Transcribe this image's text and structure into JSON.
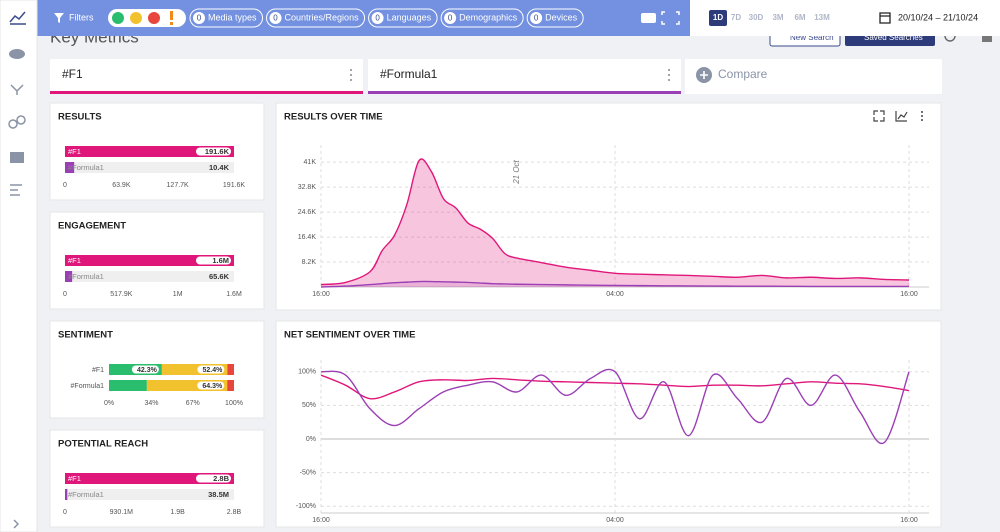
{
  "toolbar": {
    "filters": "Filters",
    "chips": [
      {
        "count": 0,
        "label": "Media types"
      },
      {
        "count": 0,
        "label": "Countries/Regions"
      },
      {
        "count": 0,
        "label": "Languages"
      },
      {
        "count": 0,
        "label": "Demographics"
      },
      {
        "count": 0,
        "label": "Devices"
      }
    ],
    "ranges": [
      "1D",
      "7D",
      "30D",
      "3M",
      "6M",
      "13M"
    ],
    "date": "20/10/24 – 21/10/24"
  },
  "header": {
    "title": "Key Metrics",
    "new_search": "New Search",
    "saved_searches": "Saved Searches"
  },
  "searches": {
    "items": [
      "#F1",
      "#Formula1"
    ],
    "colors": [
      "#e0177a",
      "#9b3fb5"
    ],
    "compare": "Compare"
  },
  "chart_data": [
    {
      "type": "hbar",
      "title": "RESULTS",
      "categories": [
        "#F1",
        "#Formula1"
      ],
      "values": [
        191600,
        10400
      ],
      "value_labels": [
        "191.6K",
        "10.4K"
      ],
      "colors": [
        "#e0177a",
        "#9b3fb5"
      ],
      "xlim": [
        0,
        191600
      ],
      "xticks": [
        0,
        {
          "value": 63900,
          "label": "63.9K"
        },
        {
          "value": 127700,
          "label": "127.7K"
        },
        {
          "value": 191600,
          "label": "191.6K"
        }
      ]
    },
    {
      "type": "hbar",
      "title": "ENGAGEMENT",
      "categories": [
        "#F1",
        "#Formula1"
      ],
      "values": [
        1553700,
        65600
      ],
      "value_labels": [
        "1.6M",
        "65.6K"
      ],
      "colors": [
        "#e0177a",
        "#9b3fb5"
      ],
      "xlim": [
        0,
        1553700
      ],
      "xticks": [
        0,
        {
          "value": 517900,
          "label": "517.9K"
        },
        {
          "value": 1035800,
          "label": "1M"
        },
        {
          "value": 1553700,
          "label": "1.6M"
        }
      ]
    },
    {
      "type": "stacked_hbar",
      "title": "SENTIMENT",
      "categories": [
        "#F1",
        "#Formula1"
      ],
      "series": [
        {
          "color": "#2bbd6e",
          "values": [
            42.3,
            30.3
          ],
          "value_labels": [
            "42.3%",
            null
          ]
        },
        {
          "color": "#f2c12e",
          "values": [
            52.4,
            64.3
          ],
          "value_labels": [
            "52.4%",
            "64.3%"
          ]
        },
        {
          "color": "#e8453c",
          "values": [
            5.3,
            5.4
          ]
        }
      ],
      "xlim": [
        0,
        100
      ],
      "xticks": [
        {
          "value": 0,
          "label": "0%"
        },
        {
          "value": 34,
          "label": "34%"
        },
        {
          "value": 67,
          "label": "67%"
        },
        {
          "value": 100,
          "label": "100%"
        }
      ]
    },
    {
      "type": "hbar",
      "title": "POTENTIAL REACH",
      "categories": [
        "#F1",
        "#Formula1"
      ],
      "values": [
        2790300000,
        38500000
      ],
      "value_labels": [
        "2.8B",
        "38.5M"
      ],
      "colors": [
        "#e0177a",
        "#9b3fb5"
      ],
      "xlim": [
        0,
        2790300000
      ],
      "xticks": [
        0,
        {
          "value": 930100000,
          "label": "930.1M"
        },
        {
          "value": 1860200000,
          "label": "1.9B"
        },
        {
          "value": 2790300000,
          "label": "2.8B"
        }
      ]
    },
    {
      "type": "area",
      "title": "RESULTS OVER TIME",
      "x": [
        0,
        1,
        2,
        2.5,
        3,
        3.5,
        4,
        4.5,
        5,
        5.5,
        6,
        6.5,
        7,
        7.5,
        8,
        9,
        10,
        11,
        12,
        13,
        14,
        15,
        16,
        17,
        18,
        19,
        20,
        21,
        22,
        23,
        24
      ],
      "series": [
        {
          "color": "#e0177a",
          "values": [
            800,
            1500,
            5000,
            12000,
            17000,
            27000,
            41500,
            38000,
            29000,
            26000,
            21000,
            19000,
            16000,
            11000,
            9500,
            8000,
            6500,
            5500,
            4500,
            4200,
            4000,
            3800,
            3500,
            3200,
            3800,
            3000,
            3200,
            2800,
            3000,
            2500,
            2300
          ]
        },
        {
          "color": "#9b3fb5",
          "values": [
            0,
            300,
            800,
            1100,
            1400,
            1600,
            1800,
            1800,
            1700,
            1600,
            1500,
            1300,
            1100,
            1000,
            900,
            800,
            700,
            600,
            500,
            450,
            400,
            350,
            300,
            280,
            260,
            240,
            200,
            200,
            200,
            200,
            200
          ]
        }
      ],
      "xlim": [
        0,
        24
      ],
      "ylim": [
        0,
        45000
      ],
      "xticks": [
        {
          "value": 0,
          "label": "16:00"
        },
        {
          "value": 12,
          "label": "04:00"
        },
        {
          "value": 24,
          "label": "16:00"
        }
      ],
      "yticks": [
        {
          "value": 8200,
          "label": "8.2K"
        },
        {
          "value": 16400,
          "label": "16.4K"
        },
        {
          "value": 24600,
          "label": "24.6K"
        },
        {
          "value": 32800,
          "label": "32.8K"
        },
        {
          "value": 41000,
          "label": "41K"
        }
      ],
      "annotations": [
        {
          "text": "21 Oct",
          "x": 8
        }
      ],
      "grid": true
    },
    {
      "type": "line",
      "title": "NET SENTIMENT OVER TIME",
      "x": [
        0,
        1,
        2,
        3,
        4,
        5,
        6,
        7,
        8,
        9,
        10,
        11,
        12,
        13,
        14,
        15,
        16,
        17,
        18,
        19,
        20,
        21,
        22,
        23,
        24
      ],
      "series": [
        {
          "color": "#e0177a",
          "values": [
            95,
            80,
            60,
            70,
            85,
            88,
            87,
            90,
            88,
            86,
            85,
            84,
            83,
            82,
            80,
            78,
            80,
            80,
            79,
            82,
            85,
            83,
            82,
            78,
            72
          ]
        },
        {
          "color": "#9b3fb5",
          "values": [
            100,
            95,
            45,
            20,
            45,
            70,
            80,
            85,
            70,
            95,
            65,
            90,
            100,
            30,
            85,
            5,
            95,
            60,
            25,
            90,
            50,
            95,
            40,
            -5,
            100
          ]
        }
      ],
      "xlim": [
        0,
        24
      ],
      "ylim": [
        -110,
        110
      ],
      "xticks": [
        {
          "value": 0,
          "label": "16:00"
        },
        {
          "value": 12,
          "label": "04:00"
        },
        {
          "value": 24,
          "label": "16:00"
        }
      ],
      "yticks": [
        {
          "value": -100,
          "label": "-100%"
        },
        {
          "value": -50,
          "label": "-50%"
        },
        {
          "value": 0,
          "label": "0%"
        },
        {
          "value": 50,
          "label": "50%"
        },
        {
          "value": 100,
          "label": "100%"
        }
      ],
      "grid": true
    }
  ]
}
